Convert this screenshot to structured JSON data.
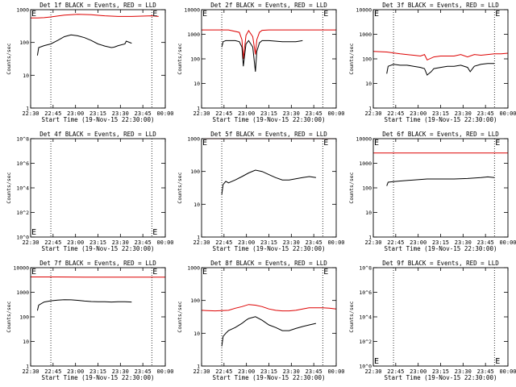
{
  "colors": {
    "events": "#000000",
    "lld": "#dd0000",
    "axis": "#000000",
    "background": "#ffffff"
  },
  "chart_data": [
    {
      "type": "line",
      "title": "Det 1f BLACK = Events, RED = LLD",
      "xlabel": "Start Time (19-Nov-15 22:30:00)",
      "ylabel": "Counts/sec",
      "scale": "log",
      "xlim": [
        0,
        100
      ],
      "ylim": [
        1,
        1000
      ],
      "xticks": [
        "22:30",
        "22:45",
        "23:00",
        "23:15",
        "23:30",
        "23:45",
        "00:00"
      ],
      "yticks": [
        "1",
        "10",
        "100",
        "1000"
      ],
      "vlines": [
        15,
        90
      ],
      "markers": [
        {
          "label": "E",
          "x": 0,
          "y": 1000
        },
        {
          "label": "E",
          "x": 90,
          "y": 1000
        }
      ],
      "series": [
        {
          "name": "LLD",
          "color": "red",
          "x": [
            0,
            5,
            10,
            15,
            25,
            35,
            45,
            55,
            65,
            75,
            85,
            90,
            95
          ],
          "y": [
            560,
            560,
            570,
            600,
            680,
            720,
            700,
            650,
            620,
            620,
            640,
            650,
            620
          ]
        },
        {
          "name": "Events",
          "color": "black",
          "x": [
            5,
            6,
            10,
            15,
            20,
            25,
            30,
            35,
            40,
            45,
            50,
            55,
            60,
            62,
            65,
            70,
            71,
            75
          ],
          "y": [
            40,
            70,
            80,
            90,
            115,
            150,
            170,
            160,
            140,
            115,
            90,
            78,
            70,
            72,
            80,
            90,
            110,
            95
          ]
        }
      ]
    },
    {
      "type": "line",
      "title": "Det 2f BLACK = Events, RED = LLD",
      "xlabel": "Start Time (19-Nov-15 22:30:00)",
      "ylabel": "Counts/sec",
      "scale": "log",
      "xlim": [
        0,
        100
      ],
      "ylim": [
        1,
        10000
      ],
      "xticks": [
        "22:30",
        "22:45",
        "23:00",
        "23:15",
        "23:30",
        "23:45",
        "00:00"
      ],
      "yticks": [
        "1",
        "10",
        "100",
        "1000",
        "10000"
      ],
      "vlines": [
        15,
        90
      ],
      "markers": [
        {
          "label": "E",
          "x": 0,
          "y": 10000
        },
        {
          "label": "E",
          "x": 90,
          "y": 10000
        }
      ],
      "series": [
        {
          "name": "LLD",
          "color": "red",
          "x": [
            0,
            20,
            28,
            30,
            31,
            33,
            35,
            38,
            40,
            41,
            43,
            45,
            50,
            60,
            80,
            100
          ],
          "y": [
            1500,
            1500,
            1200,
            600,
            100,
            900,
            1400,
            800,
            150,
            600,
            1200,
            1450,
            1500,
            1500,
            1500,
            1500
          ]
        },
        {
          "name": "Events",
          "color": "black",
          "x": [
            15,
            16,
            18,
            25,
            28,
            30,
            31,
            33,
            35,
            38,
            40,
            41,
            43,
            45,
            50,
            60,
            70,
            75
          ],
          "y": [
            300,
            500,
            550,
            550,
            500,
            300,
            50,
            400,
            550,
            300,
            30,
            200,
            450,
            550,
            550,
            500,
            500,
            550
          ]
        }
      ]
    },
    {
      "type": "line",
      "title": "Det 3f BLACK = Events, RED = LLD",
      "xlabel": "Start Time (19-Nov-15 22:30:00)",
      "ylabel": "Counts/sec",
      "scale": "log",
      "xlim": [
        0,
        100
      ],
      "ylim": [
        1,
        10000
      ],
      "xticks": [
        "22:30",
        "22:45",
        "23:00",
        "23:15",
        "23:30",
        "23:45",
        "00:00"
      ],
      "yticks": [
        "1",
        "10",
        "100",
        "1000",
        "10000"
      ],
      "vlines": [
        15,
        90
      ],
      "markers": [
        {
          "label": "E",
          "x": 0,
          "y": 10000
        },
        {
          "label": "E",
          "x": 90,
          "y": 10000
        }
      ],
      "series": [
        {
          "name": "LLD",
          "color": "red",
          "x": [
            0,
            10,
            20,
            30,
            35,
            38,
            40,
            45,
            50,
            55,
            60,
            65,
            70,
            75,
            80,
            85,
            90,
            95,
            100
          ],
          "y": [
            200,
            190,
            160,
            140,
            130,
            150,
            90,
            120,
            130,
            130,
            130,
            150,
            120,
            150,
            140,
            150,
            160,
            160,
            170
          ]
        },
        {
          "name": "Events",
          "color": "black",
          "x": [
            10,
            11,
            15,
            20,
            25,
            30,
            35,
            38,
            40,
            43,
            45,
            50,
            55,
            60,
            65,
            70,
            72,
            75,
            80,
            85,
            90
          ],
          "y": [
            25,
            50,
            60,
            55,
            55,
            50,
            45,
            40,
            22,
            30,
            40,
            45,
            50,
            50,
            55,
            45,
            30,
            50,
            60,
            65,
            65
          ]
        }
      ]
    },
    {
      "type": "line",
      "title": "Det 4f BLACK = Events, RED = LLD",
      "xlabel": "Start Time (19-Nov-15 22:30:00)",
      "ylabel": "Counts/sec",
      "scale": "log",
      "xlim": [
        0,
        100
      ],
      "ylim": [
        1,
        1000000000
      ],
      "xticks": [
        "22:30",
        "22:45",
        "23:00",
        "23:15",
        "23:30",
        "23:45",
        "00:00"
      ],
      "yticks": [
        "10^0",
        "10^2",
        "10^4",
        "10^6",
        "10^8"
      ],
      "vlines": [
        15,
        90
      ],
      "markers": [
        {
          "label": "E",
          "x": 0,
          "y": 1
        },
        {
          "label": "E",
          "x": 90,
          "y": 1
        }
      ],
      "series": []
    },
    {
      "type": "line",
      "title": "Det 5f BLACK = Events, RED = LLD",
      "xlabel": "Start Time (19-Nov-15 22:30:00)",
      "ylabel": "Counts/sec",
      "scale": "log",
      "xlim": [
        0,
        100
      ],
      "ylim": [
        1,
        1000
      ],
      "xticks": [
        "22:30",
        "22:45",
        "23:00",
        "23:15",
        "23:30",
        "23:45",
        "00:00"
      ],
      "yticks": [
        "1",
        "10",
        "100",
        "1000"
      ],
      "vlines": [
        15,
        90
      ],
      "markers": [
        {
          "label": "E",
          "x": 0,
          "y": 1000
        },
        {
          "label": "E",
          "x": 90,
          "y": 1000
        }
      ],
      "series": [
        {
          "name": "LLD",
          "color": "red",
          "x": [
            0,
            20,
            40,
            60,
            80,
            100
          ],
          "y": [
            1000,
            1000,
            1000,
            1000,
            1000,
            1000
          ]
        },
        {
          "name": "Events",
          "color": "black",
          "x": [
            15,
            16,
            18,
            20,
            25,
            30,
            35,
            40,
            45,
            50,
            55,
            60,
            65,
            70,
            75,
            80,
            85
          ],
          "y": [
            20,
            40,
            50,
            45,
            55,
            70,
            90,
            110,
            100,
            80,
            65,
            55,
            55,
            60,
            65,
            70,
            65
          ]
        }
      ]
    },
    {
      "type": "line",
      "title": "Det 6f BLACK = Events, RED = LLD",
      "xlabel": "Start Time (19-Nov-15 22:30:00)",
      "ylabel": "Counts/sec",
      "scale": "log",
      "xlim": [
        0,
        100
      ],
      "ylim": [
        1,
        10000
      ],
      "xticks": [
        "22:30",
        "22:45",
        "23:00",
        "23:15",
        "23:30",
        "23:45",
        "00:00"
      ],
      "yticks": [
        "1",
        "10",
        "100",
        "1000",
        "10000"
      ],
      "vlines": [
        15,
        90
      ],
      "markers": [
        {
          "label": "E",
          "x": 0,
          "y": 10000
        },
        {
          "label": "E",
          "x": 90,
          "y": 10000
        }
      ],
      "series": [
        {
          "name": "LLD",
          "color": "red",
          "x": [
            0,
            20,
            40,
            60,
            80,
            100
          ],
          "y": [
            2600,
            2600,
            2600,
            2600,
            2600,
            2600
          ]
        },
        {
          "name": "Events",
          "color": "black",
          "x": [
            10,
            11,
            15,
            20,
            30,
            40,
            50,
            60,
            70,
            80,
            85,
            90
          ],
          "y": [
            120,
            170,
            180,
            190,
            210,
            230,
            230,
            230,
            240,
            260,
            280,
            260
          ]
        }
      ]
    },
    {
      "type": "line",
      "title": "Det 7f BLACK = Events, RED = LLD",
      "xlabel": "Start Time (19-Nov-15 22:30:00)",
      "ylabel": "Counts/sec",
      "scale": "log",
      "xlim": [
        0,
        100
      ],
      "ylim": [
        1,
        10000
      ],
      "xticks": [
        "22:30",
        "22:45",
        "23:00",
        "23:15",
        "23:30",
        "23:45",
        "00:00"
      ],
      "yticks": [
        "1",
        "10",
        "100",
        "1000",
        "10000"
      ],
      "vlines": [
        15,
        90
      ],
      "markers": [
        {
          "label": "E",
          "x": 0,
          "y": 10000
        },
        {
          "label": "E",
          "x": 90,
          "y": 10000
        }
      ],
      "series": [
        {
          "name": "LLD",
          "color": "red",
          "x": [
            0,
            20,
            40,
            60,
            80,
            100
          ],
          "y": [
            4200,
            4200,
            4100,
            4100,
            4100,
            4100
          ]
        },
        {
          "name": "Events",
          "color": "black",
          "x": [
            5,
            6,
            10,
            15,
            20,
            25,
            30,
            35,
            40,
            45,
            50,
            55,
            60,
            65,
            70,
            75
          ],
          "y": [
            180,
            300,
            400,
            450,
            480,
            500,
            490,
            470,
            440,
            420,
            410,
            410,
            400,
            410,
            410,
            400
          ]
        }
      ]
    },
    {
      "type": "line",
      "title": "Det 8f BLACK = Events, RED = LLD",
      "xlabel": "Start Time (19-Nov-15 22:30:00)",
      "ylabel": "Counts/sec",
      "scale": "log",
      "xlim": [
        0,
        100
      ],
      "ylim": [
        1,
        1000
      ],
      "xticks": [
        "22:30",
        "22:45",
        "23:00",
        "23:15",
        "23:30",
        "23:45",
        "00:00"
      ],
      "yticks": [
        "1",
        "10",
        "100",
        "1000"
      ],
      "vlines": [
        15,
        90
      ],
      "markers": [
        {
          "label": "E",
          "x": 0,
          "y": 1000
        },
        {
          "label": "E",
          "x": 90,
          "y": 1000
        }
      ],
      "series": [
        {
          "name": "LLD",
          "color": "red",
          "x": [
            0,
            10,
            20,
            25,
            30,
            35,
            40,
            45,
            50,
            55,
            60,
            65,
            70,
            75,
            80,
            85,
            90,
            95,
            100
          ],
          "y": [
            50,
            48,
            50,
            58,
            65,
            75,
            72,
            65,
            55,
            50,
            48,
            48,
            50,
            55,
            60,
            60,
            60,
            58,
            55
          ]
        },
        {
          "name": "Events",
          "color": "black",
          "x": [
            15,
            16,
            18,
            20,
            25,
            30,
            33,
            35,
            40,
            45,
            50,
            55,
            60,
            65,
            70,
            75,
            80,
            85
          ],
          "y": [
            4,
            8,
            10,
            12,
            15,
            20,
            25,
            28,
            32,
            25,
            18,
            15,
            12,
            12,
            14,
            16,
            18,
            20
          ]
        }
      ]
    },
    {
      "type": "line",
      "title": "Det 9f BLACK = Events, RED = LLD",
      "xlabel": "Start Time (19-Nov-15 22:30:00)",
      "ylabel": "Counts/sec",
      "scale": "log",
      "xlim": [
        0,
        100
      ],
      "ylim": [
        1,
        1000000000
      ],
      "xticks": [
        "22:30",
        "22:45",
        "23:00",
        "23:15",
        "23:30",
        "23:45",
        "00:00"
      ],
      "yticks": [
        "10^0",
        "10^2",
        "10^4",
        "10^6",
        "10^8"
      ],
      "vlines": [
        15,
        90
      ],
      "markers": [
        {
          "label": "E",
          "x": 0,
          "y": 1
        },
        {
          "label": "E",
          "x": 90,
          "y": 1
        }
      ],
      "series": []
    }
  ]
}
